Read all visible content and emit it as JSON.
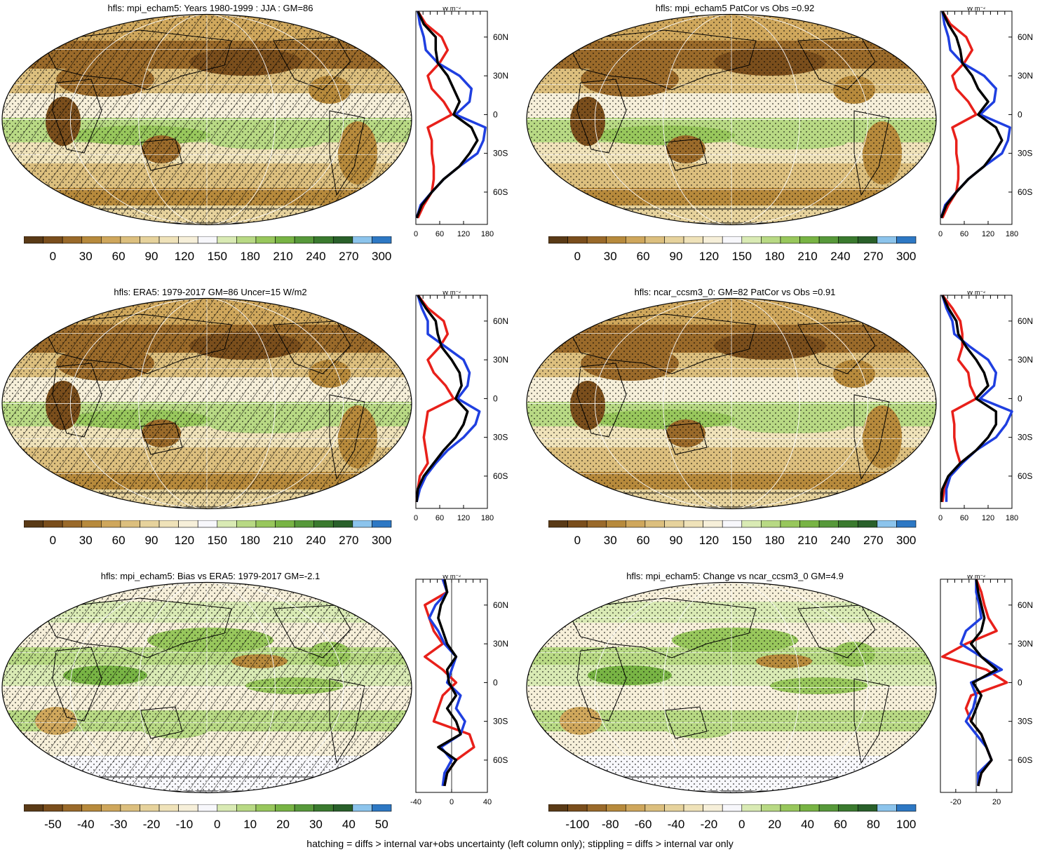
{
  "caption": "hatching = diffs > internal var+obs uncertainty (left column only); stippling = diffs > internal var only",
  "palette": {
    "abs": [
      "#5a3a16",
      "#7a4e1c",
      "#9a6a2a",
      "#b78a3c",
      "#cfa75c",
      "#dcbf7e",
      "#e6d29c",
      "#efe2b9",
      "#f6efd9",
      "#f7f7fb",
      "#d9eab4",
      "#b8d984",
      "#98c75c",
      "#78b444",
      "#57993a",
      "#3a7a2e",
      "#29602a",
      "#8cc4ec",
      "#2d78c4"
    ],
    "diff": [
      "#5a3a16",
      "#7a4e1c",
      "#9a6a2a",
      "#b78a3c",
      "#cfa75c",
      "#dcbf7e",
      "#e6d29c",
      "#efe2b9",
      "#f6efd9",
      "#f7f7fb",
      "#d9eab4",
      "#b8d984",
      "#98c75c",
      "#78b444",
      "#57993a",
      "#3a7a2e",
      "#29602a",
      "#8cc4ec",
      "#2d78c4"
    ]
  },
  "panels": [
    {
      "id": "p1",
      "title": "hfls: mpi_echam5: Years 1980-1999 : JJA : GM=86",
      "scale": "abs",
      "hatched": true,
      "cbar_labels": [
        "0",
        "30",
        "60",
        "90",
        "120",
        "150",
        "180",
        "210",
        "240",
        "270",
        "300"
      ],
      "prof_ticks": [
        "0",
        "60",
        "120",
        "180"
      ],
      "prof_range": [
        0,
        180
      ],
      "prof_unit": "W m⁻²"
    },
    {
      "id": "p2",
      "title": "hfls: mpi_echam5 PatCor vs Obs =0.92",
      "scale": "abs",
      "hatched": false,
      "cbar_labels": [
        "0",
        "30",
        "60",
        "90",
        "120",
        "150",
        "180",
        "210",
        "240",
        "270",
        "300"
      ],
      "prof_ticks": [
        "0",
        "60",
        "120",
        "180"
      ],
      "prof_range": [
        0,
        180
      ],
      "prof_unit": "W m⁻²"
    },
    {
      "id": "p3",
      "title": "hfls: ERA5: 1979-2017 GM=86 Uncer=15 W/m2",
      "scale": "abs",
      "hatched": true,
      "cbar_labels": [
        "0",
        "30",
        "60",
        "90",
        "120",
        "150",
        "180",
        "210",
        "240",
        "270",
        "300"
      ],
      "prof_ticks": [
        "0",
        "60",
        "120",
        "180"
      ],
      "prof_range": [
        0,
        180
      ],
      "prof_unit": "W m⁻²"
    },
    {
      "id": "p4",
      "title": "hfls: ncar_ccsm3_0: GM=82 PatCor vs Obs =0.91",
      "scale": "abs",
      "hatched": false,
      "cbar_labels": [
        "0",
        "30",
        "60",
        "90",
        "120",
        "150",
        "180",
        "210",
        "240",
        "270",
        "300"
      ],
      "prof_ticks": [
        "0",
        "60",
        "120",
        "180"
      ],
      "prof_range": [
        0,
        180
      ],
      "prof_unit": "W m⁻²"
    },
    {
      "id": "p5",
      "title": "hfls: mpi_echam5: Bias vs ERA5: 1979-2017 GM=-2.1",
      "scale": "diff",
      "hatched": true,
      "cbar_labels": [
        "-50",
        "-40",
        "-30",
        "-20",
        "-10",
        "0",
        "10",
        "20",
        "30",
        "40",
        "50"
      ],
      "prof_ticks": [
        "-40",
        "0",
        "40"
      ],
      "prof_range": [
        -40,
        40
      ],
      "prof_unit": "W m⁻²"
    },
    {
      "id": "p6",
      "title": "hfls: mpi_echam5: Change vs ncar_ccsm3_0 GM=4.9",
      "scale": "diff",
      "hatched": false,
      "cbar_labels": [
        "-100",
        "-80",
        "-60",
        "-40",
        "-20",
        "0",
        "20",
        "40",
        "60",
        "80",
        "100"
      ],
      "prof_ticks": [
        "-20",
        "20"
      ],
      "prof_range": [
        -35,
        35
      ],
      "prof_unit": "W m⁻²"
    }
  ],
  "lat_ticks": [
    "60N",
    "30N",
    "0",
    "30S",
    "60S"
  ],
  "chart_data": [
    {
      "type": "line",
      "title": "hfls: mpi_echam5: Years 1980-1999 : JJA : GM=86",
      "x_unit": "W m-2",
      "y": "latitude",
      "lat": [
        80,
        70,
        60,
        50,
        40,
        30,
        20,
        10,
        0,
        -10,
        -20,
        -30,
        -40,
        -50,
        -60,
        -70,
        -80
      ],
      "series": [
        {
          "color": "black",
          "values": [
            5,
            20,
            50,
            50,
            55,
            80,
            95,
            110,
            95,
            140,
            155,
            135,
            110,
            70,
            40,
            15,
            2
          ]
        },
        {
          "color": "blue",
          "values": [
            5,
            10,
            20,
            25,
            55,
            110,
            140,
            135,
            100,
            175,
            170,
            155,
            110,
            70,
            40,
            12,
            2
          ]
        },
        {
          "color": "red",
          "values": [
            5,
            25,
            65,
            80,
            60,
            30,
            40,
            70,
            90,
            30,
            40,
            40,
            45,
            45,
            40,
            20,
            5
          ]
        }
      ]
    },
    {
      "type": "line",
      "title": "hfls: mpi_echam5 PatCor vs Obs =0.92",
      "x_unit": "W m-2",
      "y": "latitude",
      "lat": [
        80,
        70,
        60,
        50,
        40,
        30,
        20,
        10,
        0,
        -10,
        -20,
        -30,
        -40,
        -50,
        -60,
        -70,
        -80
      ],
      "series": [
        {
          "color": "black",
          "values": [
            5,
            20,
            40,
            50,
            55,
            80,
            95,
            120,
            95,
            140,
            155,
            135,
            110,
            70,
            40,
            15,
            2
          ]
        },
        {
          "color": "blue",
          "values": [
            5,
            10,
            20,
            25,
            55,
            110,
            140,
            135,
            100,
            175,
            170,
            155,
            110,
            70,
            40,
            12,
            2
          ]
        },
        {
          "color": "red",
          "values": [
            5,
            25,
            65,
            80,
            60,
            30,
            40,
            70,
            90,
            30,
            40,
            40,
            45,
            45,
            40,
            20,
            5
          ]
        }
      ]
    },
    {
      "type": "line",
      "title": "hfls: ERA5: 1979-2017 GM=86 Uncer=15 W/m2",
      "x_unit": "W m-2",
      "y": "latitude",
      "lat": [
        80,
        70,
        60,
        50,
        40,
        30,
        20,
        10,
        0,
        -10,
        -20,
        -30,
        -40,
        -50,
        -60,
        -70,
        -80
      ],
      "series": [
        {
          "color": "black",
          "values": [
            5,
            25,
            50,
            55,
            65,
            90,
            110,
            115,
            100,
            130,
            120,
            100,
            70,
            45,
            20,
            5,
            2
          ]
        },
        {
          "color": "blue",
          "values": [
            5,
            15,
            30,
            30,
            75,
            120,
            135,
            130,
            105,
            160,
            150,
            120,
            80,
            50,
            25,
            10,
            2
          ]
        },
        {
          "color": "red",
          "values": [
            5,
            30,
            70,
            80,
            60,
            30,
            45,
            75,
            95,
            30,
            25,
            20,
            25,
            30,
            10,
            5,
            2
          ]
        }
      ]
    },
    {
      "type": "line",
      "title": "hfls: ncar_ccsm3_0: GM=82 PatCor vs Obs =0.91",
      "x_unit": "W m-2",
      "y": "latitude",
      "lat": [
        80,
        70,
        60,
        50,
        40,
        30,
        20,
        10,
        0,
        -10,
        -20,
        -30,
        -40,
        -50,
        -60,
        -70,
        -80
      ],
      "series": [
        {
          "color": "black",
          "values": [
            5,
            20,
            40,
            45,
            65,
            90,
            110,
            120,
            90,
            140,
            140,
            120,
            90,
            50,
            20,
            5,
            2
          ]
        },
        {
          "color": "blue",
          "values": [
            5,
            15,
            30,
            35,
            75,
            120,
            140,
            135,
            100,
            180,
            165,
            140,
            90,
            55,
            25,
            15,
            15
          ]
        },
        {
          "color": "red",
          "values": [
            5,
            30,
            50,
            55,
            55,
            45,
            70,
            75,
            90,
            30,
            35,
            35,
            40,
            50,
            25,
            10,
            5
          ]
        }
      ]
    },
    {
      "type": "line",
      "title": "hfls: mpi_echam5: Bias vs ERA5: 1979-2017 GM=-2.1",
      "x_unit": "W m-2",
      "y": "latitude",
      "lat": [
        80,
        70,
        60,
        50,
        40,
        30,
        20,
        10,
        0,
        -10,
        -20,
        -30,
        -40,
        -50,
        -60,
        -70,
        -80
      ],
      "series": [
        {
          "color": "black",
          "values": [
            -8,
            -5,
            -12,
            -15,
            -10,
            -5,
            5,
            -5,
            -3,
            5,
            -5,
            5,
            10,
            -15,
            5,
            -5,
            -8
          ]
        },
        {
          "color": "blue",
          "values": [
            -10,
            -5,
            -18,
            -25,
            -15,
            -8,
            5,
            0,
            -5,
            10,
            5,
            15,
            10,
            -12,
            0,
            -8,
            -10
          ]
        },
        {
          "color": "red",
          "values": [
            -10,
            -5,
            -30,
            -25,
            -20,
            -10,
            -30,
            -10,
            5,
            -10,
            -15,
            -20,
            20,
            25,
            5,
            -5,
            -8
          ]
        }
      ]
    },
    {
      "type": "line",
      "title": "hfls: mpi_echam5: Change vs ncar_ccsm3_0 GM=4.9",
      "x_unit": "W m-2",
      "y": "latitude",
      "lat": [
        80,
        70,
        60,
        50,
        40,
        30,
        20,
        10,
        0,
        -10,
        -20,
        -30,
        -40,
        -50,
        -60,
        -70,
        -80
      ],
      "series": [
        {
          "color": "black",
          "values": [
            0,
            2,
            5,
            8,
            5,
            -5,
            5,
            20,
            -3,
            5,
            0,
            -5,
            5,
            10,
            15,
            5,
            2
          ]
        },
        {
          "color": "blue",
          "values": [
            0,
            0,
            3,
            5,
            -10,
            -15,
            5,
            25,
            -5,
            0,
            -3,
            -10,
            0,
            10,
            15,
            2,
            2
          ]
        },
        {
          "color": "red",
          "values": [
            0,
            5,
            8,
            12,
            20,
            -10,
            -33,
            10,
            30,
            -5,
            -10,
            -5,
            5,
            10,
            15,
            5,
            2
          ]
        }
      ]
    }
  ]
}
